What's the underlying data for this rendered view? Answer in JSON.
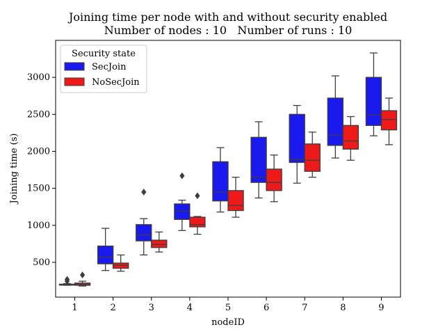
{
  "chart_data": {
    "type": "boxplot",
    "title": "Joining time per node with and without security enabled",
    "subtitle": "Number of nodes : 10   Number of runs : 10",
    "xlabel": "nodeID",
    "ylabel": "Joining time (s)",
    "ylim": [
      30,
      3500
    ],
    "yticks": [
      500,
      1000,
      1500,
      2000,
      2500,
      3000
    ],
    "categories": [
      "1",
      "2",
      "3",
      "4",
      "5",
      "6",
      "7",
      "8",
      "9"
    ],
    "grid": false,
    "legend": {
      "title": "Security state",
      "placement": "top-left"
    },
    "series": [
      {
        "name": "SecJoin",
        "color": "#1a1aee",
        "boxes": [
          {
            "min": 190,
            "q1": 192,
            "median": 198,
            "q3": 205,
            "max": 212,
            "outliers": [
              245,
              270
            ]
          },
          {
            "min": 390,
            "q1": 480,
            "median": 570,
            "q3": 720,
            "max": 960,
            "outliers": []
          },
          {
            "min": 600,
            "q1": 790,
            "median": 870,
            "q3": 1010,
            "max": 1090,
            "outliers": [
              1450
            ]
          },
          {
            "min": 930,
            "q1": 1080,
            "median": 1190,
            "q3": 1290,
            "max": 1340,
            "outliers": [
              1670
            ]
          },
          {
            "min": 1180,
            "q1": 1330,
            "median": 1450,
            "q3": 1860,
            "max": 2050,
            "outliers": []
          },
          {
            "min": 1370,
            "q1": 1580,
            "median": 1650,
            "q3": 2190,
            "max": 2400,
            "outliers": []
          },
          {
            "min": 1570,
            "q1": 1850,
            "median": 1890,
            "q3": 2500,
            "max": 2620,
            "outliers": []
          },
          {
            "min": 1910,
            "q1": 2080,
            "median": 2220,
            "q3": 2720,
            "max": 3020,
            "outliers": []
          },
          {
            "min": 2210,
            "q1": 2350,
            "median": 2490,
            "q3": 3000,
            "max": 3330,
            "outliers": []
          }
        ]
      },
      {
        "name": "NoSecJoin",
        "color": "#ee1a1a",
        "boxes": [
          {
            "min": 180,
            "q1": 190,
            "median": 205,
            "q3": 220,
            "max": 245,
            "outliers": [
              330
            ]
          },
          {
            "min": 380,
            "q1": 420,
            "median": 460,
            "q3": 490,
            "max": 600,
            "outliers": []
          },
          {
            "min": 640,
            "q1": 700,
            "median": 740,
            "q3": 800,
            "max": 910,
            "outliers": []
          },
          {
            "min": 880,
            "q1": 980,
            "median": 1010,
            "q3": 1110,
            "max": 1120,
            "outliers": [
              1400
            ]
          },
          {
            "min": 1110,
            "q1": 1200,
            "median": 1270,
            "q3": 1470,
            "max": 1650,
            "outliers": []
          },
          {
            "min": 1320,
            "q1": 1470,
            "median": 1580,
            "q3": 1760,
            "max": 1950,
            "outliers": []
          },
          {
            "min": 1650,
            "q1": 1730,
            "median": 1880,
            "q3": 2100,
            "max": 2260,
            "outliers": []
          },
          {
            "min": 1880,
            "q1": 2030,
            "median": 2140,
            "q3": 2350,
            "max": 2470,
            "outliers": []
          },
          {
            "min": 2090,
            "q1": 2290,
            "median": 2430,
            "q3": 2550,
            "max": 2720,
            "outliers": []
          }
        ]
      }
    ]
  }
}
